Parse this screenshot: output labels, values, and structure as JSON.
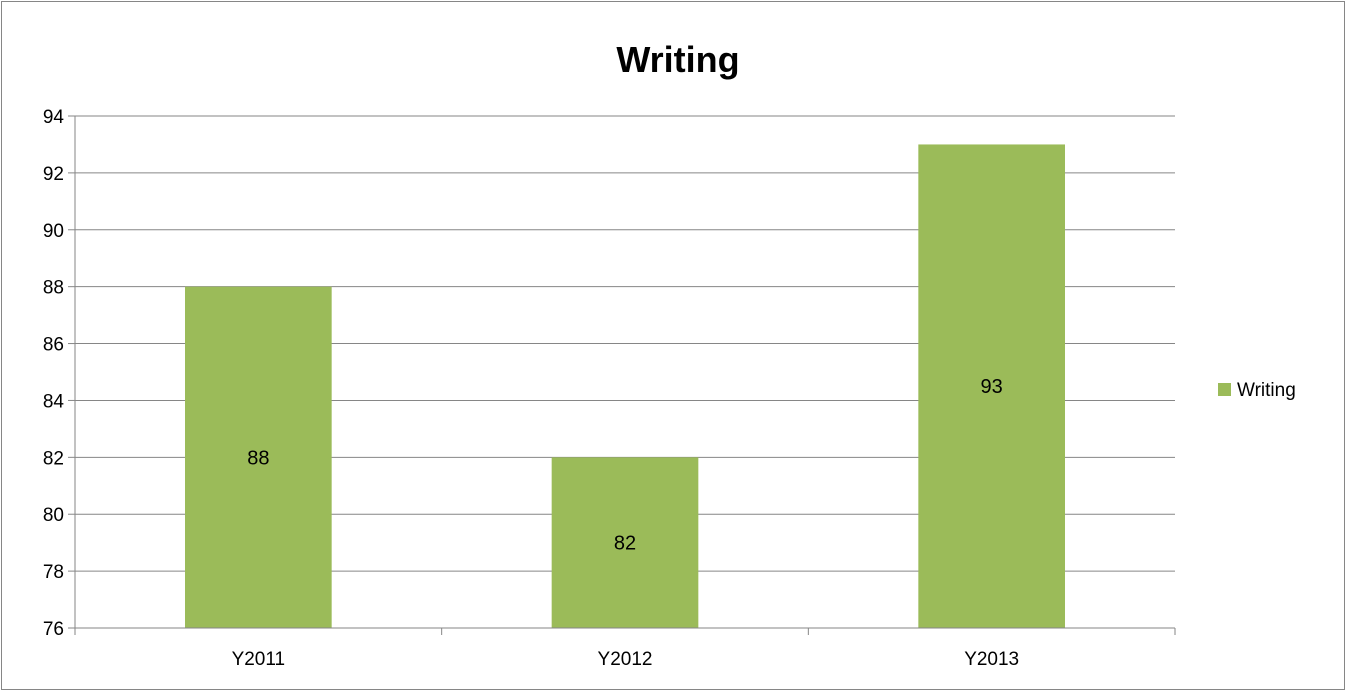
{
  "chart_data": {
    "type": "bar",
    "title": "Writing",
    "categories": [
      "Y2011",
      "Y2012",
      "Y2013"
    ],
    "series": [
      {
        "name": "Writing",
        "values": [
          88,
          82,
          93
        ],
        "color": "#9bbb59"
      }
    ],
    "ylim": [
      76,
      94
    ],
    "yticks": [
      76,
      78,
      80,
      82,
      84,
      86,
      88,
      90,
      92,
      94
    ],
    "data_labels": [
      "88",
      "82",
      "93"
    ],
    "grid": true,
    "legend": "right",
    "xlabel": "",
    "ylabel": ""
  }
}
